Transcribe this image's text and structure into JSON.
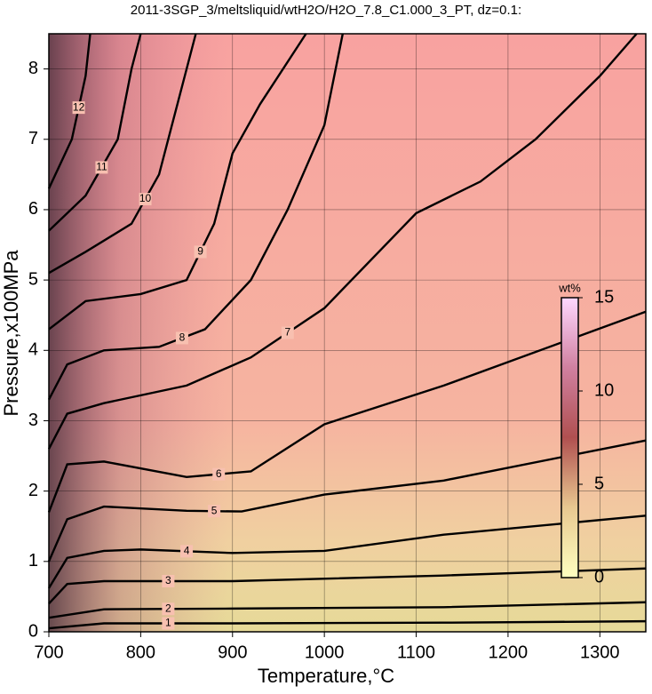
{
  "chart_data": {
    "type": "contour",
    "title": "2011-3SGP_3/meltsliquid/wtH2O/H2O_7.8_C1.000_3_PT, dz=0.1:",
    "x_label": "Temperature,°C",
    "y_label": "Pressure,x100MPa",
    "xlim": [
      700,
      1350
    ],
    "xticks": [
      700,
      800,
      900,
      1000,
      1100,
      1200,
      1300
    ],
    "ylim": [
      0,
      8.5
    ],
    "yticks": [
      0,
      1,
      2,
      3,
      4,
      5,
      6,
      7,
      8
    ],
    "grid": true,
    "colorbar": {
      "label": "wt%",
      "lim": [
        0,
        15
      ],
      "ticks": [
        0,
        5,
        10,
        15
      ]
    },
    "contours": [
      {
        "level": 1,
        "x": [
          700,
          760,
          900,
          1130,
          1350
        ],
        "y": [
          0.05,
          0.12,
          0.12,
          0.13,
          0.15
        ]
      },
      {
        "level": 2,
        "x": [
          700,
          760,
          900,
          1130,
          1350
        ],
        "y": [
          0.2,
          0.32,
          0.33,
          0.35,
          0.42
        ]
      },
      {
        "level": 3,
        "x": [
          700,
          720,
          760,
          900,
          1130,
          1350
        ],
        "y": [
          0.4,
          0.68,
          0.72,
          0.72,
          0.8,
          0.9
        ]
      },
      {
        "level": 4,
        "x": [
          700,
          720,
          760,
          800,
          900,
          1000,
          1130,
          1350
        ],
        "y": [
          0.62,
          1.05,
          1.15,
          1.17,
          1.12,
          1.15,
          1.38,
          1.65
        ]
      },
      {
        "level": 5,
        "x": [
          700,
          720,
          760,
          850,
          910,
          1000,
          1130,
          1350
        ],
        "y": [
          1.0,
          1.6,
          1.78,
          1.72,
          1.71,
          1.95,
          2.15,
          2.72
        ]
      },
      {
        "level": 6,
        "x": [
          700,
          720,
          760,
          850,
          920,
          1000,
          1130,
          1350
        ],
        "y": [
          1.7,
          2.38,
          2.42,
          2.2,
          2.28,
          2.95,
          3.5,
          4.55
        ]
      },
      {
        "level": 7,
        "x": [
          700,
          720,
          760,
          850,
          920,
          1000,
          1100,
          1170,
          1230,
          1300,
          1340
        ],
        "y": [
          2.6,
          3.1,
          3.25,
          3.5,
          3.9,
          4.6,
          5.95,
          6.4,
          7.0,
          7.9,
          8.5
        ]
      },
      {
        "level": 8,
        "x": [
          700,
          720,
          760,
          820,
          870,
          920,
          960,
          1000,
          1020
        ],
        "y": [
          3.3,
          3.8,
          4.0,
          4.05,
          4.3,
          5.0,
          6.0,
          7.2,
          8.5
        ]
      },
      {
        "level": 9,
        "x": [
          700,
          740,
          800,
          850,
          880,
          900,
          930,
          980
        ],
        "y": [
          4.3,
          4.7,
          4.8,
          5.0,
          5.8,
          6.8,
          7.5,
          8.5
        ]
      },
      {
        "level": 10,
        "x": [
          700,
          740,
          790,
          820,
          840,
          860
        ],
        "y": [
          5.1,
          5.4,
          5.8,
          6.5,
          7.5,
          8.5
        ]
      },
      {
        "level": 11,
        "x": [
          700,
          740,
          775,
          790,
          800
        ],
        "y": [
          5.7,
          6.2,
          7.0,
          8.0,
          8.5
        ]
      },
      {
        "level": 12,
        "x": [
          700,
          725,
          740,
          745
        ],
        "y": [
          6.3,
          7.0,
          7.9,
          8.5
        ]
      }
    ]
  }
}
